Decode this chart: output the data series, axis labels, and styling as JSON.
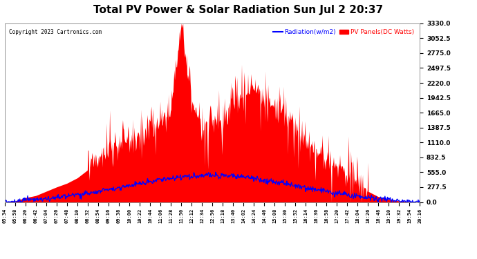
{
  "title": "Total PV Power & Solar Radiation Sun Jul 2 20:37",
  "copyright": "Copyright 2023 Cartronics.com",
  "legend_radiation": "Radiation(w/m2)",
  "legend_pv": "PV Panels(DC Watts)",
  "yticks": [
    0.0,
    277.5,
    555.0,
    832.5,
    1110.0,
    1387.5,
    1665.0,
    1942.5,
    2220.0,
    2497.5,
    2775.0,
    3052.5,
    3330.0
  ],
  "ymax": 3330.0,
  "ymin": 0.0,
  "color_pv": "#FF0000",
  "color_radiation": "#0000FF",
  "color_background": "#FFFFFF",
  "color_grid": "#CCCCCC",
  "title_fontsize": 11,
  "x_labels": [
    "05:34",
    "05:58",
    "06:20",
    "06:42",
    "07:04",
    "07:26",
    "07:48",
    "08:10",
    "08:32",
    "08:54",
    "09:16",
    "09:38",
    "10:00",
    "10:22",
    "10:44",
    "11:06",
    "11:28",
    "11:50",
    "12:12",
    "12:34",
    "12:56",
    "13:18",
    "13:40",
    "14:02",
    "14:24",
    "14:46",
    "15:08",
    "15:30",
    "15:52",
    "16:14",
    "16:36",
    "16:58",
    "17:20",
    "17:42",
    "18:04",
    "18:26",
    "18:48",
    "19:10",
    "19:32",
    "19:54",
    "20:16"
  ]
}
